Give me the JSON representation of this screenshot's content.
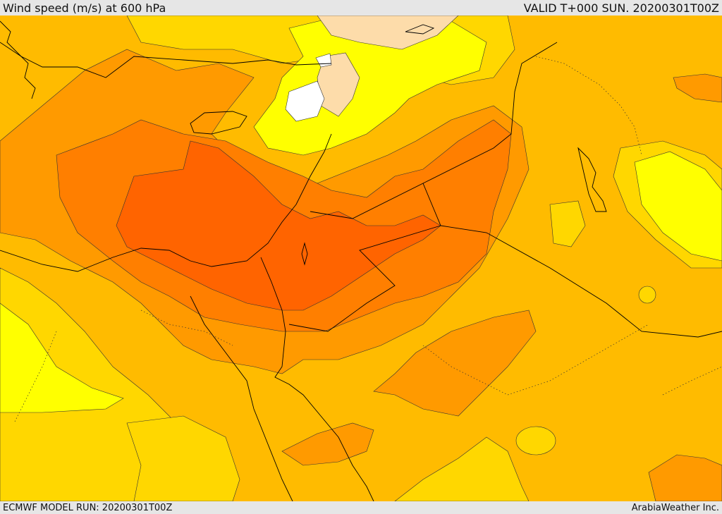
{
  "header": {
    "title": "Wind speed (m/s) at 600 hPa",
    "valid": "VALID T+000 SUN. 20200301T00Z"
  },
  "footer": {
    "model_run": "ECMWF MODEL RUN: 20200301T00Z",
    "credit": "ArabiaWeather Inc."
  },
  "colors": {
    "band_white": "#ffffff",
    "band_light_peach": "#fddcaa",
    "band_yellow": "#ffff00",
    "band_yellow_orange": "#ffd700",
    "band_amber": "#ffbb00",
    "band_orange": "#ff9a00",
    "band_dark_orange": "#ff7f00",
    "band_red_orange": "#ff6400",
    "boundary_lines": "#000000"
  }
}
